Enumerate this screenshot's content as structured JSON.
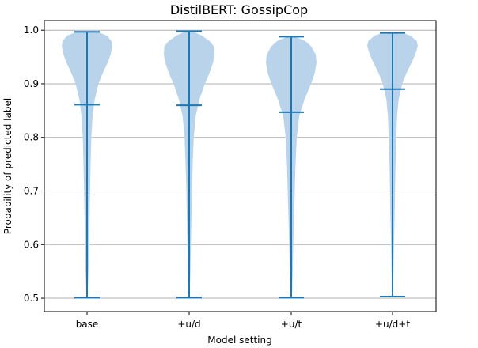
{
  "chart_data": {
    "type": "violin",
    "title": "DistilBERT: GossipCop",
    "xlabel": "Model setting",
    "ylabel": "Probability of predicted label",
    "categories": [
      "base",
      "+u/d",
      "+u/t",
      "+u/d+t"
    ],
    "ylim": [
      0.475,
      1.018
    ],
    "yticks": [
      0.5,
      0.6,
      0.7,
      0.8,
      0.9,
      1.0
    ],
    "ytick_labels": [
      "0.5",
      "0.6",
      "0.7",
      "0.8",
      "0.9",
      "1.0"
    ],
    "grid": "horizontal",
    "stats": [
      {
        "min": 0.501,
        "mean": 0.861,
        "max": 0.997
      },
      {
        "min": 0.501,
        "mean": 0.86,
        "max": 0.998
      },
      {
        "min": 0.501,
        "mean": 0.847,
        "max": 0.988
      },
      {
        "min": 0.503,
        "mean": 0.89,
        "max": 0.995
      }
    ],
    "density_profiles": [
      [
        [
          0.501,
          0.02
        ],
        [
          0.55,
          0.06
        ],
        [
          0.6,
          0.09
        ],
        [
          0.65,
          0.1
        ],
        [
          0.7,
          0.12
        ],
        [
          0.75,
          0.14
        ],
        [
          0.8,
          0.17
        ],
        [
          0.84,
          0.22
        ],
        [
          0.87,
          0.3
        ],
        [
          0.9,
          0.45
        ],
        [
          0.92,
          0.62
        ],
        [
          0.94,
          0.82
        ],
        [
          0.955,
          0.93
        ],
        [
          0.97,
          1.0
        ],
        [
          0.98,
          0.96
        ],
        [
          0.99,
          0.78
        ],
        [
          0.997,
          0.4
        ]
      ],
      [
        [
          0.501,
          0.02
        ],
        [
          0.55,
          0.05
        ],
        [
          0.6,
          0.07
        ],
        [
          0.65,
          0.09
        ],
        [
          0.7,
          0.11
        ],
        [
          0.75,
          0.14
        ],
        [
          0.8,
          0.18
        ],
        [
          0.84,
          0.26
        ],
        [
          0.87,
          0.4
        ],
        [
          0.9,
          0.62
        ],
        [
          0.92,
          0.8
        ],
        [
          0.94,
          0.95
        ],
        [
          0.955,
          1.0
        ],
        [
          0.97,
          0.98
        ],
        [
          0.98,
          0.8
        ],
        [
          0.99,
          0.5
        ],
        [
          0.998,
          0.15
        ]
      ],
      [
        [
          0.501,
          0.03
        ],
        [
          0.55,
          0.06
        ],
        [
          0.6,
          0.08
        ],
        [
          0.65,
          0.11
        ],
        [
          0.7,
          0.14
        ],
        [
          0.75,
          0.17
        ],
        [
          0.8,
          0.22
        ],
        [
          0.84,
          0.32
        ],
        [
          0.87,
          0.52
        ],
        [
          0.9,
          0.78
        ],
        [
          0.92,
          0.93
        ],
        [
          0.94,
          1.0
        ],
        [
          0.955,
          0.97
        ],
        [
          0.97,
          0.78
        ],
        [
          0.98,
          0.55
        ],
        [
          0.988,
          0.15
        ]
      ],
      [
        [
          0.503,
          0.01
        ],
        [
          0.55,
          0.04
        ],
        [
          0.6,
          0.06
        ],
        [
          0.65,
          0.08
        ],
        [
          0.7,
          0.1
        ],
        [
          0.75,
          0.12
        ],
        [
          0.8,
          0.15
        ],
        [
          0.84,
          0.18
        ],
        [
          0.87,
          0.24
        ],
        [
          0.9,
          0.38
        ],
        [
          0.92,
          0.55
        ],
        [
          0.94,
          0.76
        ],
        [
          0.955,
          0.9
        ],
        [
          0.97,
          1.0
        ],
        [
          0.98,
          0.96
        ],
        [
          0.99,
          0.7
        ],
        [
          0.995,
          0.4
        ]
      ]
    ],
    "colors": {
      "fill": "#b9d4ea",
      "line": "#1f77b4",
      "grid": "#b0b0b0"
    }
  }
}
